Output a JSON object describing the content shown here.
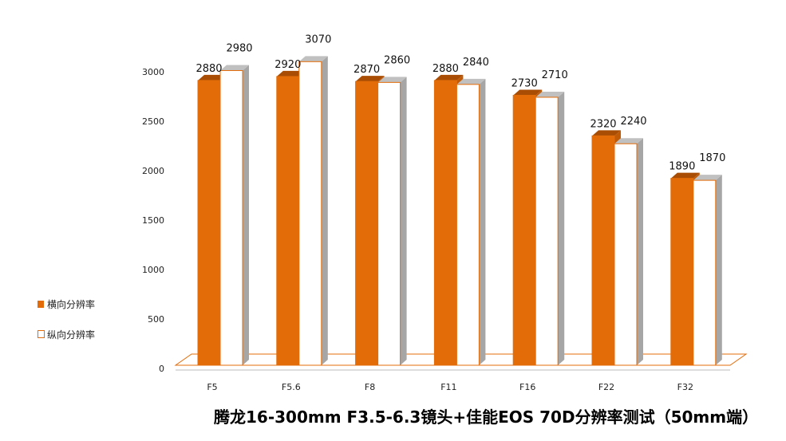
{
  "chart_data": {
    "type": "bar",
    "title": "腾龙16-300mm F3.5-6.3镜头+佳能EOS 70D分辨率测试（50mm端）",
    "categories": [
      "F5",
      "F5.6",
      "F8",
      "F11",
      "F16",
      "F22",
      "F32"
    ],
    "series": [
      {
        "name": "横向分辨率",
        "values": [
          2880,
          2920,
          2870,
          2880,
          2730,
          2320,
          1890
        ]
      },
      {
        "name": "纵向分辨率",
        "values": [
          2980,
          3070,
          2860,
          2840,
          2710,
          2240,
          1870
        ]
      }
    ],
    "ylim": [
      0,
      3000
    ],
    "yticks": [
      0,
      500,
      1000,
      1500,
      2000,
      2500,
      3000
    ],
    "grid": false,
    "legend_position": "left",
    "colors": {
      "series1_front": "#e36c09",
      "series1_top": "#a84d03",
      "series1_side": "#c05a06",
      "series2_front": "#ffffff",
      "series2_border": "#e36c09",
      "series2_top": "#c0c0c0",
      "series2_side": "#a6a6a6",
      "floor": "#ffffff",
      "floor_border": "#e36c09"
    }
  }
}
